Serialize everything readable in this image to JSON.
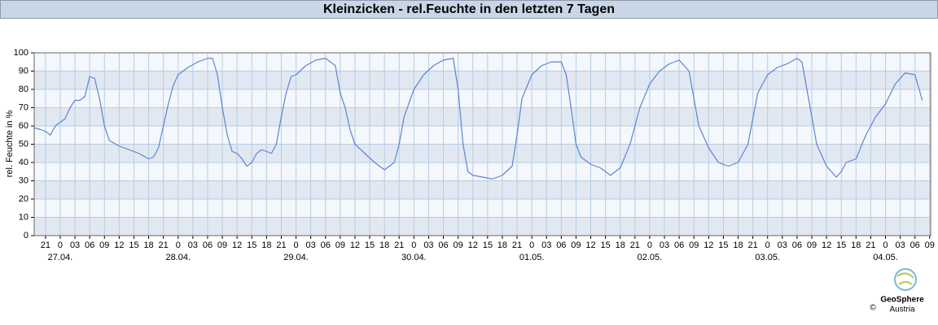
{
  "chart_data": {
    "type": "line",
    "title": "Kleinzicken - rel.Feuchte in den letzten 7 Tagen",
    "y_label": "rel. Feuchte in %",
    "color": "#5b84d6",
    "grid": true,
    "x": [
      -5.3,
      -4,
      -3,
      -2,
      -1,
      0,
      1,
      2,
      3,
      4,
      5,
      6,
      7,
      8,
      9,
      10,
      12,
      14,
      16,
      18,
      19,
      20,
      21,
      22,
      23,
      24,
      26,
      28,
      30,
      31,
      32,
      33,
      34,
      35,
      36,
      37,
      38,
      39,
      40,
      41,
      42,
      43,
      44,
      45,
      46,
      47,
      48,
      50,
      52,
      54,
      56,
      57,
      58,
      59,
      60,
      62,
      64,
      66,
      68,
      69,
      70,
      72,
      74,
      76,
      78,
      80,
      81,
      82,
      83,
      84,
      86,
      88,
      90,
      92,
      93,
      94,
      96,
      98,
      100,
      102,
      103,
      104,
      105,
      106,
      108,
      110,
      112,
      114,
      116,
      118,
      120,
      122,
      124,
      126,
      128,
      129,
      130,
      132,
      134,
      136,
      138,
      140,
      142,
      144,
      146,
      148,
      150,
      151,
      152,
      153,
      154,
      156,
      158,
      159,
      160,
      162,
      164,
      166,
      168,
      170,
      172,
      174,
      175.5
    ],
    "values": [
      59,
      58,
      57,
      55,
      60,
      62,
      64,
      70,
      74,
      74,
      76,
      87,
      86,
      75,
      60,
      52,
      49,
      47,
      45,
      42,
      43,
      48,
      60,
      72,
      82,
      88,
      92,
      95,
      97,
      97,
      88,
      70,
      55,
      46,
      45,
      42,
      38,
      40,
      45,
      47,
      46,
      45,
      50,
      65,
      78,
      87,
      88,
      93,
      96,
      97,
      93,
      78,
      70,
      58,
      50,
      45,
      40,
      36,
      40,
      50,
      65,
      80,
      88,
      93,
      96,
      97,
      80,
      50,
      35,
      33,
      32,
      31,
      33,
      38,
      55,
      75,
      88,
      93,
      95,
      95,
      88,
      70,
      50,
      43,
      39,
      37,
      33,
      37,
      50,
      70,
      83,
      90,
      94,
      96,
      90,
      75,
      60,
      48,
      40,
      38,
      40,
      50,
      78,
      88,
      92,
      94,
      97,
      95,
      80,
      65,
      50,
      38,
      32,
      35,
      40,
      42,
      55,
      65,
      72,
      83,
      89,
      88,
      74
    ],
    "xlim": [
      -5.3,
      177.2
    ],
    "ylim": [
      0,
      100
    ],
    "yticks": [
      0,
      10,
      20,
      30,
      40,
      50,
      60,
      70,
      80,
      90,
      100
    ],
    "xticks": [
      {
        "value": -3,
        "label": "21"
      },
      {
        "value": 0,
        "label": "0"
      },
      {
        "value": 3,
        "label": "03"
      },
      {
        "value": 6,
        "label": "06"
      },
      {
        "value": 9,
        "label": "09"
      },
      {
        "value": 12,
        "label": "12"
      },
      {
        "value": 15,
        "label": "15"
      },
      {
        "value": 18,
        "label": "18"
      },
      {
        "value": 21,
        "label": "21"
      },
      {
        "value": 24,
        "label": "0"
      },
      {
        "value": 27,
        "label": "03"
      },
      {
        "value": 30,
        "label": "06"
      },
      {
        "value": 33,
        "label": "09"
      },
      {
        "value": 36,
        "label": "12"
      },
      {
        "value": 39,
        "label": "15"
      },
      {
        "value": 42,
        "label": "18"
      },
      {
        "value": 45,
        "label": "21"
      },
      {
        "value": 48,
        "label": "0"
      },
      {
        "value": 51,
        "label": "03"
      },
      {
        "value": 54,
        "label": "06"
      },
      {
        "value": 57,
        "label": "09"
      },
      {
        "value": 60,
        "label": "12"
      },
      {
        "value": 63,
        "label": "15"
      },
      {
        "value": 66,
        "label": "18"
      },
      {
        "value": 69,
        "label": "21"
      },
      {
        "value": 72,
        "label": "0"
      },
      {
        "value": 75,
        "label": "03"
      },
      {
        "value": 78,
        "label": "06"
      },
      {
        "value": 81,
        "label": "09"
      },
      {
        "value": 84,
        "label": "12"
      },
      {
        "value": 87,
        "label": "15"
      },
      {
        "value": 90,
        "label": "18"
      },
      {
        "value": 93,
        "label": "21"
      },
      {
        "value": 96,
        "label": "0"
      },
      {
        "value": 99,
        "label": "03"
      },
      {
        "value": 102,
        "label": "06"
      },
      {
        "value": 105,
        "label": "09"
      },
      {
        "value": 108,
        "label": "12"
      },
      {
        "value": 111,
        "label": "15"
      },
      {
        "value": 114,
        "label": "18"
      },
      {
        "value": 117,
        "label": "21"
      },
      {
        "value": 120,
        "label": "0"
      },
      {
        "value": 123,
        "label": "03"
      },
      {
        "value": 126,
        "label": "06"
      },
      {
        "value": 129,
        "label": "09"
      },
      {
        "value": 132,
        "label": "12"
      },
      {
        "value": 135,
        "label": "15"
      },
      {
        "value": 138,
        "label": "18"
      },
      {
        "value": 141,
        "label": "21"
      },
      {
        "value": 144,
        "label": "0"
      },
      {
        "value": 147,
        "label": "03"
      },
      {
        "value": 150,
        "label": "06"
      },
      {
        "value": 153,
        "label": "09"
      },
      {
        "value": 156,
        "label": "12"
      },
      {
        "value": 159,
        "label": "15"
      },
      {
        "value": 162,
        "label": "18"
      },
      {
        "value": 165,
        "label": "21"
      },
      {
        "value": 168,
        "label": "0"
      },
      {
        "value": 171,
        "label": "03"
      },
      {
        "value": 174,
        "label": "06"
      },
      {
        "value": 177,
        "label": "09"
      }
    ],
    "date_ticks": [
      {
        "value": 0,
        "label": "27.04."
      },
      {
        "value": 24,
        "label": "28.04."
      },
      {
        "value": 48,
        "label": "29.04."
      },
      {
        "value": 72,
        "label": "30.04."
      },
      {
        "value": 96,
        "label": "01.05."
      },
      {
        "value": 120,
        "label": "02.05."
      },
      {
        "value": 144,
        "label": "03.05."
      },
      {
        "value": 168,
        "label": "04.05."
      }
    ]
  },
  "logo": {
    "copyright": "©",
    "name": "GeoSphere",
    "sub": "Austria"
  }
}
